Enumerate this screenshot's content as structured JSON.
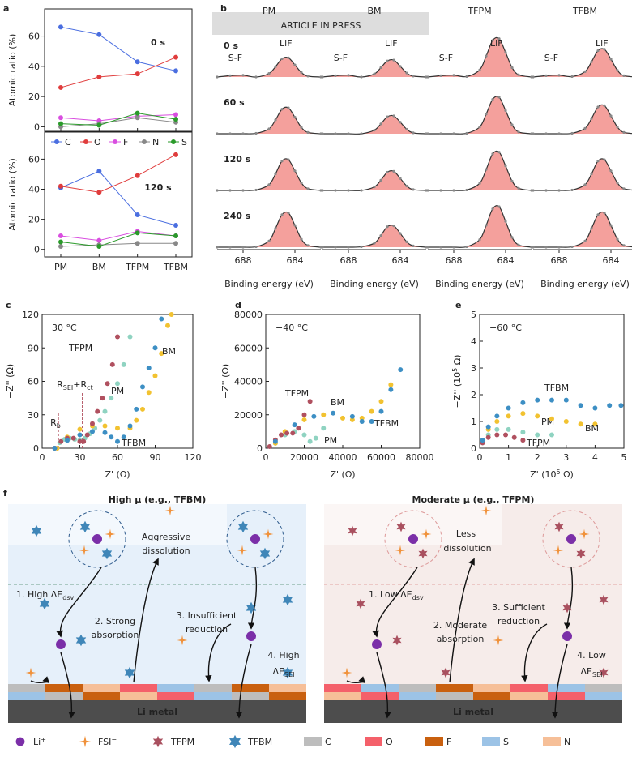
{
  "watermark": "ARTICLE IN PRESS",
  "chart_data": [
    {
      "type": "line",
      "label": "a",
      "ylabel": "Atomic ratio (%)",
      "annotation": "0 s",
      "ylim": [
        -3,
        78
      ],
      "yticks": [
        0,
        20,
        40,
        60
      ],
      "series": [
        {
          "color": "#4a6ee0",
          "values": [
            66,
            61,
            43,
            37
          ]
        },
        {
          "color": "#e03c3c",
          "values": [
            26,
            33,
            35,
            46
          ]
        },
        {
          "color": "#d94ee0",
          "values": [
            6,
            4,
            7,
            8
          ]
        },
        {
          "color": "#888888",
          "values": [
            0,
            2,
            6,
            3
          ]
        },
        {
          "color": "#2a9a2a",
          "values": [
            2,
            1,
            9,
            5
          ]
        }
      ]
    },
    {
      "type": "line",
      "ylabel": "Atomic ratio (%)",
      "annotation": "120 s",
      "ylim": [
        -5,
        78
      ],
      "yticks": [
        0,
        20,
        40,
        60
      ],
      "legend": "top",
      "categories": [
        "PM",
        "BM",
        "TFPM",
        "TFBM"
      ],
      "series": [
        {
          "name": "C",
          "color": "#4a6ee0",
          "values": [
            41,
            52,
            23,
            16
          ]
        },
        {
          "name": "O",
          "color": "#e03c3c",
          "values": [
            42,
            38,
            49,
            63
          ]
        },
        {
          "name": "F",
          "color": "#d94ee0",
          "values": [
            9,
            6,
            12,
            9
          ]
        },
        {
          "name": "N",
          "color": "#888888",
          "values": [
            2,
            3,
            4,
            4
          ]
        },
        {
          "name": "S",
          "color": "#2a9a2a",
          "values": [
            5,
            2,
            11,
            9
          ]
        }
      ]
    },
    {
      "type": "spectra",
      "label": "b",
      "xlabel": "Binding energy (eV)",
      "xlim": [
        690,
        682
      ],
      "xticks": [
        688,
        684
      ],
      "ylim": [
        0,
        1
      ],
      "columns": [
        "PM",
        "BM",
        "TFPM",
        "TFBM"
      ],
      "column_colors": [
        "#8fd3c1",
        "#f2c230",
        "#b0505f",
        "#3d8fc4"
      ],
      "rows": [
        "0 s",
        "60 s",
        "120 s",
        "240 s"
      ],
      "annotations": [
        "LiF",
        "S-F"
      ],
      "fill_color": "#f4a09c",
      "x": [
        690,
        689,
        688,
        687,
        686,
        685.5,
        685,
        684.5,
        684,
        683.5,
        683,
        682
      ],
      "panels": [
        {
          "values": [
            0,
            0.03,
            0.04,
            0,
            0.08,
            0.23,
            0.41,
            0.43,
            0.27,
            0.1,
            0.02,
            0
          ]
        },
        {
          "values": [
            0,
            0.03,
            0.04,
            0,
            0.07,
            0.21,
            0.36,
            0.38,
            0.24,
            0.09,
            0.02,
            0
          ]
        },
        {
          "values": [
            0,
            0.03,
            0.04,
            0.01,
            0.16,
            0.47,
            0.82,
            0.86,
            0.55,
            0.21,
            0.05,
            0
          ]
        },
        {
          "values": [
            0,
            0.03,
            0.04,
            0.01,
            0.12,
            0.34,
            0.59,
            0.62,
            0.4,
            0.15,
            0.03,
            0
          ]
        },
        {
          "values": [
            0,
            0,
            0,
            0.01,
            0.11,
            0.31,
            0.55,
            0.58,
            0.37,
            0.14,
            0.03,
            0
          ]
        },
        {
          "values": [
            0,
            0,
            0,
            0,
            0.08,
            0.22,
            0.38,
            0.4,
            0.26,
            0.1,
            0.02,
            0
          ]
        },
        {
          "values": [
            0,
            0,
            0,
            0.01,
            0.15,
            0.44,
            0.77,
            0.82,
            0.52,
            0.2,
            0.04,
            0
          ]
        },
        {
          "values": [
            0,
            0,
            0,
            0.01,
            0.12,
            0.34,
            0.6,
            0.63,
            0.4,
            0.15,
            0.03,
            0
          ]
        },
        {
          "values": [
            0,
            0,
            0,
            0.01,
            0.13,
            0.37,
            0.66,
            0.69,
            0.44,
            0.17,
            0.04,
            0
          ]
        },
        {
          "values": [
            0,
            0,
            0,
            0,
            0.08,
            0.23,
            0.41,
            0.43,
            0.27,
            0.1,
            0.02,
            0
          ]
        },
        {
          "values": [
            0,
            0,
            0,
            0.01,
            0.16,
            0.47,
            0.82,
            0.86,
            0.55,
            0.21,
            0.05,
            0
          ]
        },
        {
          "values": [
            0,
            0,
            0,
            0.01,
            0.13,
            0.37,
            0.66,
            0.69,
            0.44,
            0.17,
            0.04,
            0
          ]
        },
        {
          "values": [
            0,
            0,
            0,
            0.01,
            0.14,
            0.42,
            0.73,
            0.77,
            0.49,
            0.18,
            0.04,
            0
          ]
        },
        {
          "values": [
            0,
            0,
            0,
            0.01,
            0.09,
            0.26,
            0.46,
            0.48,
            0.31,
            0.12,
            0.03,
            0
          ]
        },
        {
          "values": [
            0,
            0,
            0,
            0.01,
            0.17,
            0.49,
            0.86,
            0.91,
            0.58,
            0.22,
            0.05,
            0
          ]
        },
        {
          "values": [
            0,
            0,
            0,
            0.01,
            0.14,
            0.42,
            0.73,
            0.77,
            0.49,
            0.18,
            0.04,
            0
          ]
        }
      ]
    },
    {
      "type": "scatter",
      "label": "c",
      "xlabel": "Z' (Ω)",
      "ylabel": "−Z'' (Ω)",
      "annotation": [
        "30 °C"
      ],
      "xlim": [
        0,
        120
      ],
      "xticks": [
        0,
        30,
        60,
        90,
        120
      ],
      "ylim": [
        0,
        120
      ],
      "yticks": [
        0,
        30,
        60,
        90,
        120
      ],
      "dashed_x": [
        13,
        32
      ],
      "notes": [
        [
          "R",
          {
            "sub": "b"
          }
        ],
        [
          "R",
          {
            "sub": "SEI"
          },
          "+R",
          {
            "sub": "ct"
          }
        ]
      ],
      "series": [
        {
          "name": "PM",
          "color": "#8fd3c1",
          "x": [
            10,
            14,
            18,
            22,
            26,
            30,
            34,
            38,
            42,
            46,
            50,
            55,
            60,
            65,
            70
          ],
          "values": [
            0,
            5,
            8,
            9,
            8,
            7,
            9,
            13,
            18,
            25,
            33,
            45,
            58,
            75,
            100
          ]
        },
        {
          "name": "BM",
          "color": "#f2c230",
          "x": [
            12,
            20,
            30,
            40,
            50,
            60,
            70,
            75,
            80,
            85,
            90,
            95,
            100,
            103
          ],
          "values": [
            0,
            10,
            17,
            20,
            20,
            18,
            18,
            25,
            35,
            50,
            65,
            85,
            110,
            120
          ]
        },
        {
          "name": "TFPM",
          "color": "#b0505f",
          "x": [
            10,
            15,
            20,
            25,
            30,
            33,
            36,
            40,
            44,
            48,
            52,
            56,
            60
          ],
          "values": [
            0,
            6,
            9,
            9,
            6,
            6,
            12,
            22,
            33,
            45,
            58,
            75,
            100
          ]
        },
        {
          "name": "TFBM",
          "color": "#3d8fc4",
          "x": [
            10,
            20,
            30,
            40,
            50,
            55,
            60,
            65,
            70,
            75,
            80,
            85,
            90,
            95
          ],
          "values": [
            0,
            7,
            12,
            15,
            14,
            10,
            6,
            10,
            20,
            35,
            55,
            72,
            90,
            116
          ]
        }
      ]
    },
    {
      "type": "scatter",
      "label": "d",
      "xlabel": "Z' (Ω)",
      "ylabel": "−Z'' (Ω)",
      "annotation": [
        "−40 °C"
      ],
      "xlim": [
        0,
        80000
      ],
      "xticks": [
        0,
        20000,
        40000,
        60000,
        80000
      ],
      "ylim": [
        0,
        80000
      ],
      "yticks": [
        0,
        20000,
        40000,
        60000,
        80000
      ],
      "series": [
        {
          "name": "PM",
          "color": "#8fd3c1",
          "x": [
            5000,
            10000,
            15000,
            20000,
            23000,
            26000,
            30000
          ],
          "values": [
            3000,
            8000,
            10000,
            8000,
            4000,
            6000,
            12000
          ]
        },
        {
          "name": "BM",
          "color": "#f2c230",
          "x": [
            5000,
            10000,
            20000,
            30000,
            40000,
            45000,
            50000,
            55000,
            60000,
            65000
          ],
          "values": [
            3000,
            10000,
            17000,
            20000,
            18000,
            17000,
            18000,
            22000,
            28000,
            38000
          ]
        },
        {
          "name": "TFPM",
          "color": "#b0505f",
          "x": [
            2000,
            5000,
            8000,
            11000,
            14000,
            17000,
            20000,
            23000
          ],
          "values": [
            1000,
            5000,
            8000,
            9000,
            9000,
            12000,
            20000,
            28000
          ]
        },
        {
          "name": "TFBM",
          "color": "#3d8fc4",
          "x": [
            5000,
            15000,
            25000,
            35000,
            45000,
            50000,
            55000,
            60000,
            65000,
            70000
          ],
          "values": [
            4000,
            14000,
            19000,
            21000,
            19000,
            16000,
            16000,
            22000,
            35000,
            47000
          ]
        }
      ]
    },
    {
      "type": "scatter",
      "label": "e",
      "xlabel": [
        "Z' (10",
        {
          "sup": "5"
        },
        " Ω)"
      ],
      "ylabel": [
        "−Z'' (10",
        {
          "sup": "5"
        },
        " Ω)"
      ],
      "annotation": [
        "−60 °C"
      ],
      "xlim": [
        0,
        5
      ],
      "xticks": [
        0,
        1,
        2,
        3,
        4,
        5
      ],
      "ylim": [
        0,
        5
      ],
      "yticks": [
        0,
        1,
        2,
        3,
        4,
        5
      ],
      "series": [
        {
          "name": "PM",
          "color": "#8fd3c1",
          "x": [
            0.1,
            0.3,
            0.6,
            1,
            1.5,
            2,
            2.5
          ],
          "values": [
            0.2,
            0.5,
            0.7,
            0.7,
            0.6,
            0.5,
            0.5
          ]
        },
        {
          "name": "BM",
          "color": "#f2c230",
          "x": [
            0.1,
            0.3,
            0.6,
            1,
            1.5,
            2,
            2.5,
            3,
            3.5,
            4
          ],
          "values": [
            0.3,
            0.7,
            1,
            1.2,
            1.3,
            1.2,
            1.1,
            1,
            0.9,
            0.9
          ]
        },
        {
          "name": "TFPM",
          "color": "#b0505f",
          "x": [
            0.1,
            0.3,
            0.6,
            0.9,
            1.2,
            1.5
          ],
          "values": [
            0.2,
            0.4,
            0.5,
            0.5,
            0.4,
            0.3
          ]
        },
        {
          "name": "TFBM",
          "color": "#3d8fc4",
          "x": [
            0.1,
            0.3,
            0.6,
            1,
            1.5,
            2,
            2.5,
            3,
            3.5,
            4,
            4.5,
            4.9
          ],
          "values": [
            0.3,
            0.8,
            1.2,
            1.5,
            1.7,
            1.8,
            1.8,
            1.8,
            1.6,
            1.5,
            1.6,
            1.6
          ]
        }
      ]
    }
  ],
  "diagram": {
    "label": "f",
    "left": {
      "title": "High μ (e.g., TFBM)",
      "notes": [
        [
          "Aggressive"
        ],
        [
          "dissolution"
        ],
        [
          "1. High ΔE",
          {
            "sub": "dsv"
          }
        ],
        [
          "2. Strong"
        ],
        [
          "absorption"
        ],
        [
          "3. Insufficient"
        ],
        [
          "reduction"
        ],
        [
          "4. High"
        ],
        [
          "ΔE",
          {
            "sub": "SEI"
          }
        ],
        [
          "Li metal"
        ]
      ]
    },
    "right": {
      "title": "Moderate μ (e.g., TFPM)",
      "notes": [
        [
          "Less"
        ],
        [
          "dissolution"
        ],
        [
          "1. Low ΔE",
          {
            "sub": "dsv"
          }
        ],
        [
          "3. Sufficient"
        ],
        [
          "reduction"
        ],
        [
          "2. Moderate"
        ],
        [
          "absorption"
        ],
        [
          "4. Low"
        ],
        [
          "ΔE",
          {
            "sub": "SEI"
          }
        ],
        [
          "Li metal"
        ]
      ]
    },
    "legend": [
      {
        "label": [
          "Li",
          {
            "sup": "+"
          }
        ],
        "color": "#7b2fa8"
      },
      {
        "label": [
          "FSI",
          {
            "sup": "−"
          }
        ],
        "color": "#f0913a"
      },
      {
        "label": [
          "TFPM"
        ],
        "color": "#a9505f"
      },
      {
        "label": [
          "TFBM"
        ],
        "color": "#3f86b8"
      },
      {
        "label": [
          "C"
        ],
        "color": "#bdbdbd"
      },
      {
        "label": [
          "O"
        ],
        "color": "#f4606a"
      },
      {
        "label": [
          "F"
        ],
        "color": "#c9600f"
      },
      {
        "label": [
          "S"
        ],
        "color": "#9cc3e6"
      },
      {
        "label": [
          "N"
        ],
        "color": "#f6bf98"
      }
    ]
  }
}
